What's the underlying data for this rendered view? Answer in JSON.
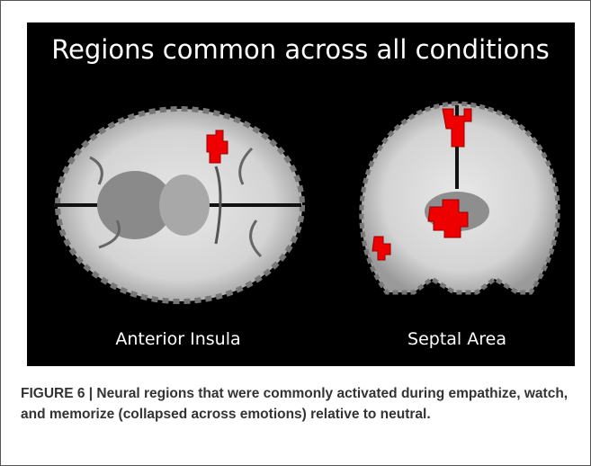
{
  "figure": {
    "title": "Regions common across all conditions",
    "panels": [
      {
        "label": "Anterior Insula"
      },
      {
        "label": "Septal Area"
      }
    ],
    "caption": "FIGURE 6 | Neural regions that were commonly activated during empathize, watch, and memorize (collapsed across emotions) relative to neutral."
  }
}
